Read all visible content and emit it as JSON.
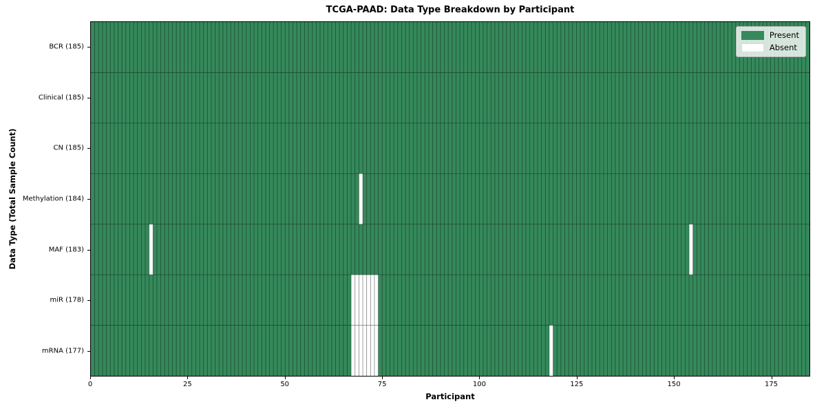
{
  "chart_data": {
    "type": "heatmap",
    "title": "TCGA-PAAD: Data Type Breakdown by Participant",
    "xlabel": "Participant",
    "ylabel": "Data Type (Total Sample Count)",
    "n_participants": 185,
    "x_ticks": [
      0,
      25,
      50,
      75,
      100,
      125,
      150,
      175
    ],
    "rows": [
      {
        "label": "BCR (185)",
        "data_type": "BCR",
        "total": 185,
        "absent_participants": []
      },
      {
        "label": "Clinical (185)",
        "data_type": "Clinical",
        "total": 185,
        "absent_participants": []
      },
      {
        "label": "CN (185)",
        "data_type": "CN",
        "total": 185,
        "absent_participants": []
      },
      {
        "label": "Methylation (184)",
        "data_type": "Methylation",
        "total": 184,
        "absent_participants": [
          69
        ]
      },
      {
        "label": "MAF (183)",
        "data_type": "MAF",
        "total": 183,
        "absent_participants": [
          15,
          154
        ]
      },
      {
        "label": "miR (178)",
        "data_type": "miR",
        "total": 178,
        "absent_participants": [
          67,
          68,
          69,
          70,
          71,
          72,
          73
        ]
      },
      {
        "label": "mRNA (177)",
        "data_type": "mRNA",
        "total": 177,
        "absent_participants": [
          67,
          68,
          69,
          70,
          71,
          72,
          73,
          118
        ]
      }
    ],
    "legend": {
      "position": "upper right",
      "entries": [
        {
          "label": "Present",
          "color": "#35895B"
        },
        {
          "label": "Absent",
          "color": "#ffffff"
        }
      ]
    },
    "colors": {
      "present": "#35895B",
      "absent": "#ffffff",
      "grid_line": "rgba(0,0,0,0.45)",
      "spine": "#000000"
    },
    "grid": true
  }
}
